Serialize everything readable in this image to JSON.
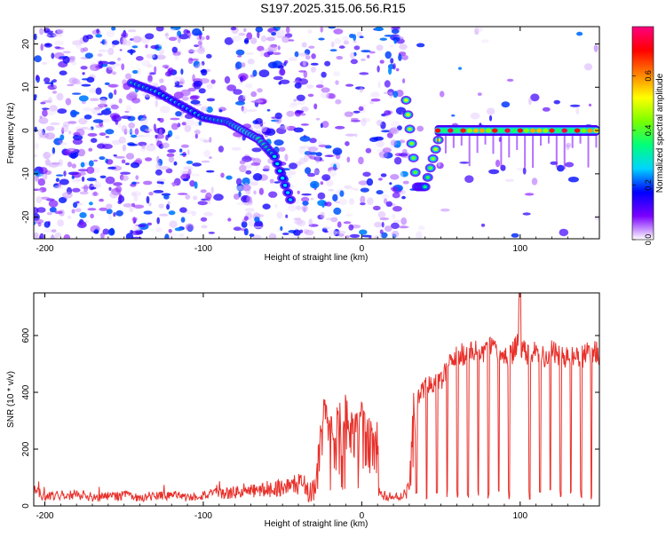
{
  "title": "S197.2025.315.06.56.R15",
  "chart_data": [
    {
      "type": "heatmap",
      "xlabel": "Height of straight line (km)",
      "ylabel": "Frequency (Hz)",
      "xlim": [
        -207,
        150
      ],
      "ylim": [
        -25,
        24
      ],
      "xticks": [
        -200,
        -100,
        0,
        100
      ],
      "yticks": [
        -20,
        -10,
        0,
        10,
        20
      ],
      "colorbar": {
        "label": "Normalized spectral amplitude",
        "range": [
          0,
          0.78
        ],
        "ticks": [
          0.0,
          0.2,
          0.4,
          0.6
        ],
        "tick_labels": [
          "0.0",
          "0.2",
          "0.4",
          "0.6"
        ],
        "colors": [
          "#ffffff",
          "#7a00ff",
          "#0000ff",
          "#00d4ff",
          "#00ff7a",
          "#7aff00",
          "#ffff00",
          "#ff8000",
          "#ff0000",
          "#ff0080"
        ]
      },
      "ridge": {
        "x": [
          -145,
          -130,
          -115,
          -100,
          -85,
          -75,
          -65,
          -55,
          -45,
          28,
          35,
          40,
          50,
          70,
          90,
          110,
          130,
          145
        ],
        "y": [
          11,
          9,
          6,
          3,
          2,
          0,
          -2,
          -6,
          -16,
          7,
          -13,
          -13,
          0,
          0,
          0,
          0,
          0,
          0
        ],
        "amplitude": [
          0.32,
          0.3,
          0.25,
          0.3,
          0.35,
          0.45,
          0.4,
          0.3,
          0.25,
          0.5,
          0.4,
          0.35,
          0.55,
          0.65,
          0.75,
          0.6,
          0.62,
          0.72
        ]
      }
    },
    {
      "type": "line",
      "xlabel": "Height of straight line (km)",
      "ylabel": "SNR (10 * v/v)",
      "xlim": [
        -207,
        150
      ],
      "ylim": [
        0,
        750
      ],
      "xticks": [
        -200,
        -100,
        0,
        100
      ],
      "yticks": [
        0,
        200,
        400,
        600
      ],
      "color": "#e8302a",
      "series": [
        {
          "x": [
            -207,
            -200,
            -190,
            -180,
            -170,
            -160,
            -150,
            -140,
            -130,
            -120,
            -110,
            -100,
            -90,
            -80,
            -70,
            -60,
            -50,
            -40,
            -30,
            -28,
            -25,
            -20,
            -15,
            -10,
            -5,
            0,
            5,
            10,
            12,
            14,
            15,
            20,
            25,
            30,
            34,
            36,
            40,
            45,
            50,
            55,
            60,
            65,
            70,
            75,
            80,
            85,
            90,
            95,
            97,
            100,
            105,
            110,
            115,
            120,
            125,
            130,
            135,
            140,
            145,
            150
          ],
          "y": [
            55,
            35,
            40,
            45,
            30,
            35,
            40,
            30,
            35,
            40,
            30,
            40,
            45,
            50,
            55,
            60,
            70,
            80,
            90,
            180,
            400,
            300,
            350,
            380,
            300,
            360,
            320,
            280,
            50,
            40,
            40,
            30,
            35,
            60,
            380,
            400,
            440,
            450,
            460,
            520,
            550,
            560,
            570,
            560,
            580,
            570,
            550,
            560,
            580,
            600,
            560,
            580,
            550,
            570,
            560,
            540,
            560,
            550,
            570,
            560
          ]
        }
      ]
    }
  ]
}
